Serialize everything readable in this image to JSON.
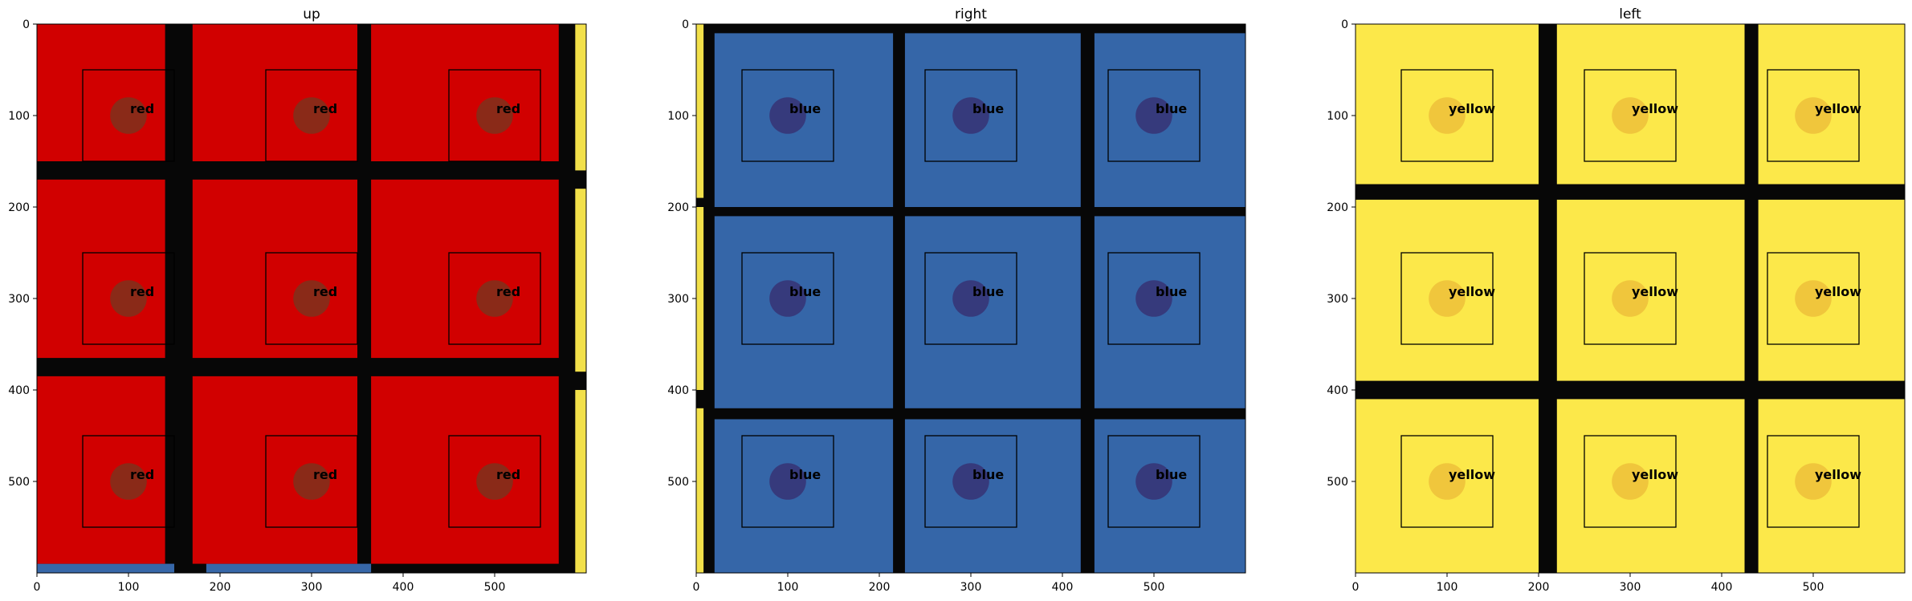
{
  "chart_data": [
    {
      "type": "image-grid",
      "title": "up",
      "label": "red",
      "colors": {
        "cell": "#d10000",
        "line": "#070707",
        "edge": "#f2e04a",
        "edge2": "#3767a8"
      },
      "extent": [
        0,
        600
      ],
      "xticks": [
        0,
        100,
        200,
        300,
        400,
        500
      ],
      "yticks": [
        0,
        100,
        200,
        300,
        400,
        500
      ],
      "tiles_x": [
        [
          0,
          140
        ],
        [
          170,
          350
        ],
        [
          365,
          570
        ]
      ],
      "tiles_y": [
        [
          0,
          150
        ],
        [
          170,
          365
        ],
        [
          385,
          590
        ]
      ],
      "boxes": [
        [
          50,
          150
        ],
        [
          250,
          350
        ],
        [
          450,
          550
        ]
      ],
      "circle_centers": [
        100,
        300,
        500
      ],
      "circle_radius": 20,
      "circle_color": "#8a2a18"
    },
    {
      "type": "image-grid",
      "title": "right",
      "label": "blue",
      "colors": {
        "cell": "#3566a8",
        "line": "#070707",
        "edge": "#f2e04a",
        "edge2": "#3767a8"
      },
      "extent": [
        0,
        600
      ],
      "xticks": [
        0,
        100,
        200,
        300,
        400,
        500
      ],
      "yticks": [
        0,
        100,
        200,
        300,
        400,
        500
      ],
      "tiles_x": [
        [
          20,
          215
        ],
        [
          228,
          420
        ],
        [
          435,
          600
        ]
      ],
      "tiles_y": [
        [
          10,
          200
        ],
        [
          210,
          420
        ],
        [
          432,
          600
        ]
      ],
      "boxes": [
        [
          50,
          150
        ],
        [
          250,
          350
        ],
        [
          450,
          550
        ]
      ],
      "circle_centers": [
        100,
        300,
        500
      ],
      "circle_radius": 20,
      "circle_color": "#363a7c"
    },
    {
      "type": "image-grid",
      "title": "left",
      "label": "yellow",
      "colors": {
        "cell": "#fce84a",
        "line": "#070707",
        "edge": "#f2e04a",
        "edge2": "#3767a8"
      },
      "extent": [
        0,
        600
      ],
      "xticks": [
        0,
        100,
        200,
        300,
        400,
        500
      ],
      "yticks": [
        0,
        100,
        200,
        300,
        400,
        500
      ],
      "tiles_x": [
        [
          0,
          200
        ],
        [
          220,
          425
        ],
        [
          440,
          600
        ]
      ],
      "tiles_y": [
        [
          0,
          175
        ],
        [
          192,
          390
        ],
        [
          410,
          600
        ]
      ],
      "boxes": [
        [
          50,
          150
        ],
        [
          250,
          350
        ],
        [
          450,
          550
        ]
      ],
      "circle_centers": [
        100,
        300,
        500
      ],
      "circle_radius": 20,
      "circle_color": "#f0c63c"
    }
  ]
}
